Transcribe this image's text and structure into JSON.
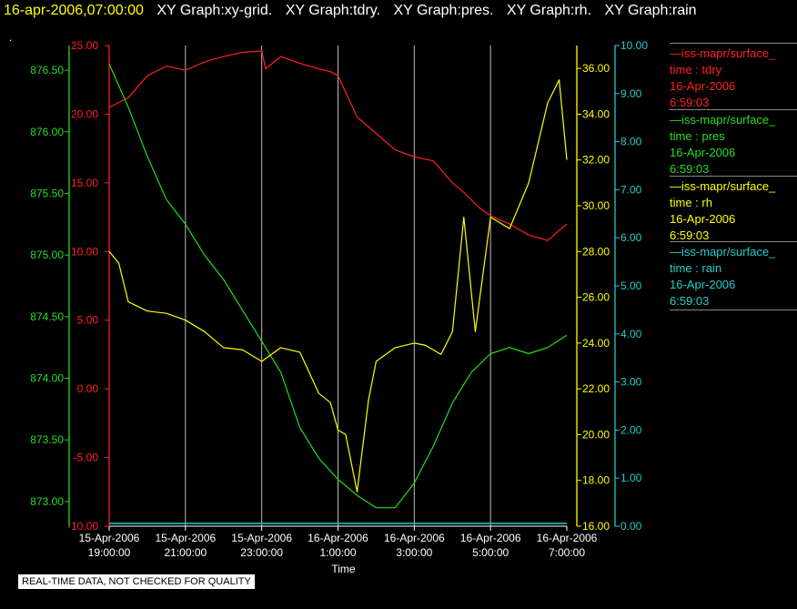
{
  "title": {
    "date": "16-apr-2006,07:00:00",
    "graphs": [
      "XY Graph:xy-grid.",
      "XY Graph:tdry.",
      "XY Graph:pres.",
      "XY Graph:rh.",
      "XY Graph:rain"
    ]
  },
  "dot": ".",
  "disclaimer": "REAL-TIME DATA, NOT CHECKED FOR QUALITY",
  "colors": {
    "tdry": "#ff2020",
    "pres": "#22dd22",
    "rh": "#ffff00",
    "rain": "#22cccc",
    "grid": "#bbbbbb"
  },
  "legend": [
    {
      "line1": "—iss-mapr/surface_",
      "line2": "time : tdry",
      "line3": "16-Apr-2006",
      "line4": "6:59:03",
      "color": "#ff2020"
    },
    {
      "line1": "—iss-mapr/surface_",
      "line2": "time : pres",
      "line3": "16-Apr-2006",
      "line4": "6:59:03",
      "color": "#22dd22"
    },
    {
      "line1": "—iss-mapr/surface_",
      "line2": "time : rh",
      "line3": "16-Apr-2006",
      "line4": "6:59:03",
      "color": "#ffff00"
    },
    {
      "line1": "—iss-mapr/surface_",
      "line2": "time : rain",
      "line3": "16-Apr-2006",
      "line4": "6:59:03",
      "color": "#22cccc"
    }
  ],
  "chart_data": {
    "type": "line",
    "xlabel": "Time",
    "x_ticks": [
      {
        "date": "15-Apr-2006",
        "time": "19:00:00",
        "hours": 0
      },
      {
        "date": "15-Apr-2006",
        "time": "21:00:00",
        "hours": 2
      },
      {
        "date": "15-Apr-2006",
        "time": "23:00:00",
        "hours": 4
      },
      {
        "date": "16-Apr-2006",
        "time": "1:00:00",
        "hours": 6
      },
      {
        "date": "16-Apr-2006",
        "time": "3:00:00",
        "hours": 8
      },
      {
        "date": "16-Apr-2006",
        "time": "5:00:00",
        "hours": 10
      },
      {
        "date": "16-Apr-2006",
        "time": "7:00:00",
        "hours": 12
      }
    ],
    "grid": true,
    "axes": {
      "tdry": {
        "min": -10,
        "max": 25,
        "ticks": [
          "-10.00",
          "-5.00",
          "0.00",
          "5.00",
          "10.00",
          "15.00",
          "20.00",
          "25.00"
        ]
      },
      "pres": {
        "min": 872.8,
        "max": 876.7,
        "ticks": [
          "873.00",
          "873.50",
          "874.00",
          "874.50",
          "875.00",
          "875.50",
          "876.00",
          "876.50"
        ]
      },
      "rh": {
        "min": 16,
        "max": 37,
        "ticks": [
          "16.00",
          "18.00",
          "20.00",
          "22.00",
          "24.00",
          "26.00",
          "28.00",
          "30.00",
          "32.00",
          "34.00",
          "36.00"
        ]
      },
      "rain": {
        "min": 0,
        "max": 10,
        "ticks": [
          "0.00",
          "1.00",
          "2.00",
          "3.00",
          "4.00",
          "5.00",
          "6.00",
          "7.00",
          "8.00",
          "9.00",
          "10.00"
        ]
      }
    },
    "series": [
      {
        "name": "time : tdry",
        "axis": "tdry",
        "x": [
          0,
          0.5,
          1,
          1.5,
          2,
          2.5,
          3,
          3.5,
          4,
          4.1,
          4.5,
          5,
          5.5,
          5.8,
          6,
          6.5,
          7,
          7.5,
          8,
          8.5,
          9,
          9.3,
          9.7,
          10,
          10.5,
          11,
          11.5,
          12
        ],
        "y": [
          20.5,
          21.2,
          22.8,
          23.5,
          23.2,
          23.8,
          24.2,
          24.5,
          24.6,
          23.3,
          24.2,
          23.7,
          23.3,
          23.1,
          22.8,
          19.8,
          18.6,
          17.4,
          16.9,
          16.6,
          15.0,
          14.3,
          13.2,
          12.6,
          12.0,
          11.2,
          10.8,
          12.0
        ]
      },
      {
        "name": "time : pres",
        "axis": "pres",
        "x": [
          0,
          0.5,
          1,
          1.5,
          2,
          2.5,
          3,
          3.5,
          4,
          4.5,
          5,
          5.5,
          6,
          6.5,
          7,
          7.5,
          8,
          8.5,
          9,
          9.5,
          10,
          10.5,
          11,
          11.5,
          12
        ],
        "y": [
          876.55,
          876.2,
          875.8,
          875.45,
          875.25,
          875.0,
          874.8,
          874.55,
          874.3,
          874.05,
          873.6,
          873.35,
          873.18,
          873.05,
          872.95,
          872.95,
          873.15,
          873.45,
          873.8,
          874.05,
          874.2,
          874.25,
          874.2,
          874.25,
          874.35
        ]
      },
      {
        "name": "time : rh",
        "axis": "rh",
        "x": [
          0,
          0.25,
          0.5,
          1,
          1.5,
          2,
          2.5,
          3,
          3.5,
          4,
          4.5,
          5,
          5.5,
          5.8,
          6,
          6.2,
          6.5,
          6.8,
          7,
          7.5,
          8,
          8.3,
          8.7,
          9,
          9.3,
          9.6,
          10,
          10.5,
          11,
          11.5,
          11.8,
          12
        ],
        "y": [
          28.0,
          27.5,
          25.8,
          25.4,
          25.3,
          25.0,
          24.5,
          23.8,
          23.7,
          23.2,
          23.8,
          23.6,
          21.8,
          21.4,
          20.2,
          20.0,
          17.5,
          21.5,
          23.2,
          23.8,
          24.0,
          23.9,
          23.5,
          24.5,
          29.5,
          24.5,
          29.5,
          29.0,
          31.0,
          34.5,
          35.5,
          32.0
        ]
      },
      {
        "name": "time : rain",
        "axis": "rain",
        "x": [
          0,
          12
        ],
        "y": [
          0,
          0
        ]
      }
    ]
  }
}
